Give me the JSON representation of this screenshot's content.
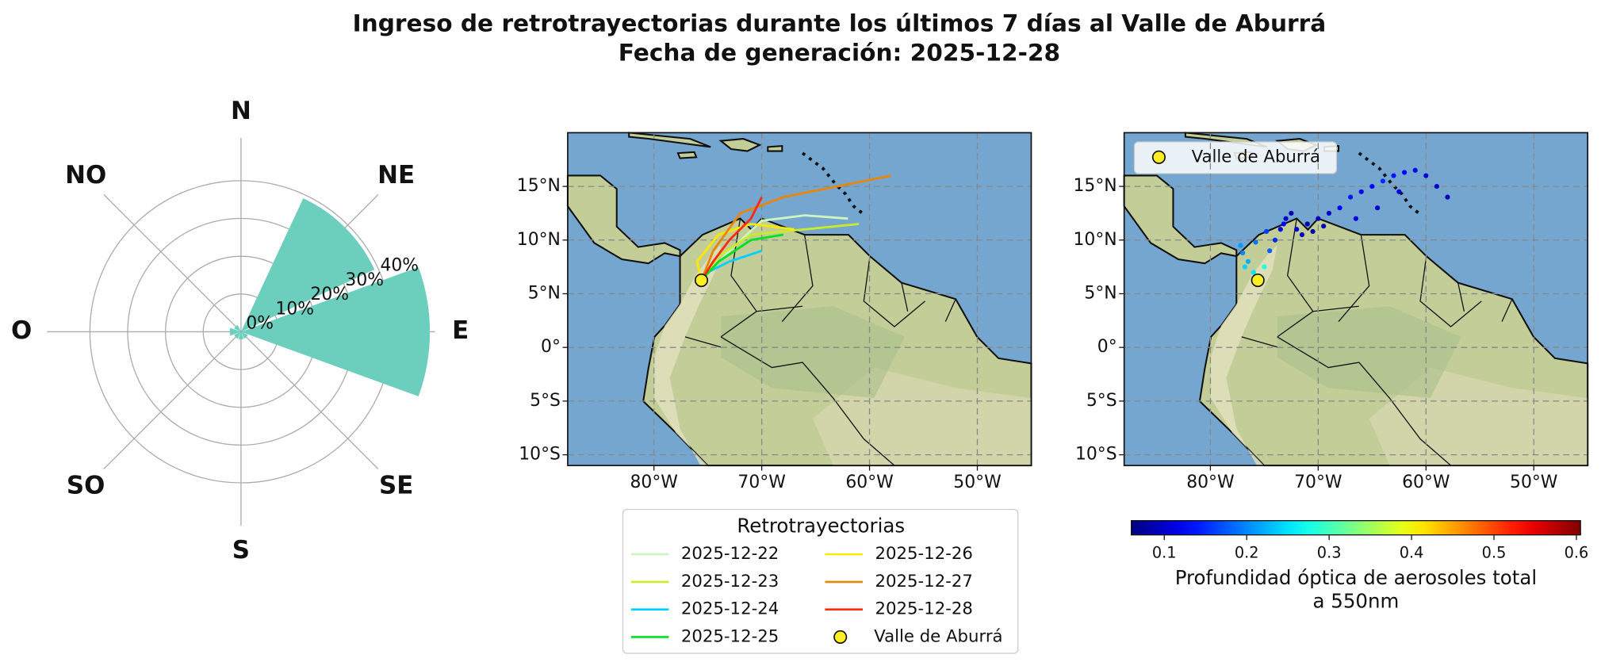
{
  "figure": {
    "title": "Ingreso de retrotrayectorias durante los últimos 7 días al Valle de Aburrá",
    "subtitle": "Fecha de generación: 2025-12-28"
  },
  "chart_data": [
    {
      "type": "rose",
      "categories": [
        "N",
        "NE",
        "E",
        "SE",
        "S",
        "SO",
        "O",
        "NO"
      ],
      "values": [
        0,
        39,
        50,
        2,
        2,
        2,
        3,
        2
      ],
      "color": "#6ccfbe",
      "rlim": [
        0,
        50
      ],
      "rticks": [
        {
          "value": 0,
          "label": "0%"
        },
        {
          "value": 10,
          "label": "10%"
        },
        {
          "value": 20,
          "label": "20%"
        },
        {
          "value": 30,
          "label": "30%"
        },
        {
          "value": 40,
          "label": "40%"
        }
      ],
      "grid": true
    },
    {
      "type": "map",
      "xlim": [
        -88,
        -45
      ],
      "ylim": [
        -11,
        20
      ],
      "xticks": [
        {
          "value": -80,
          "label": "80°W"
        },
        {
          "value": -70,
          "label": "70°W"
        },
        {
          "value": -60,
          "label": "60°W"
        },
        {
          "value": -50,
          "label": "50°W"
        }
      ],
      "yticks": [
        {
          "value": 15,
          "label": "15°N"
        },
        {
          "value": 10,
          "label": "10°N"
        },
        {
          "value": 5,
          "label": "5°N"
        },
        {
          "value": 0,
          "label": "0°"
        },
        {
          "value": -5,
          "label": "5°S"
        },
        {
          "value": -10,
          "label": "10°S"
        }
      ],
      "grid": true,
      "legend_title": "Retrotrayectorias",
      "series": [
        {
          "name": "2025-12-22",
          "color": "#ccf5c0",
          "lon": [
            -62,
            -66,
            -70,
            -73,
            -75.6
          ],
          "lat": [
            12,
            12.3,
            11.8,
            9,
            6.25
          ]
        },
        {
          "name": "2025-12-23",
          "color": "#c8ec2a",
          "lon": [
            -61,
            -66,
            -71,
            -74,
            -75.6
          ],
          "lat": [
            11.5,
            11,
            10.5,
            8.5,
            6.25
          ]
        },
        {
          "name": "2025-12-24",
          "color": "#00d0ff",
          "lon": [
            -70,
            -73,
            -75,
            -75.6
          ],
          "lat": [
            9,
            8,
            7,
            6.25
          ]
        },
        {
          "name": "2025-12-25",
          "color": "#00e020",
          "lon": [
            -68,
            -71,
            -74,
            -75.6
          ],
          "lat": [
            10.5,
            10,
            8,
            6.25
          ]
        },
        {
          "name": "2025-12-26",
          "color": "#ffe800",
          "lon": [
            -67,
            -71,
            -74,
            -76,
            -75.6
          ],
          "lat": [
            11,
            11.5,
            10.5,
            8,
            6.25
          ]
        },
        {
          "name": "2025-12-27",
          "color": "#e8860a",
          "lon": [
            -58,
            -63,
            -68,
            -72,
            -74.5,
            -75.6
          ],
          "lat": [
            16,
            15,
            14,
            12.5,
            9,
            6.25
          ]
        },
        {
          "name": "2025-12-28",
          "color": "#ff2a10",
          "lon": [
            -70,
            -71,
            -73,
            -74.5,
            -75.6
          ],
          "lat": [
            14,
            12,
            10,
            8,
            6.25
          ]
        }
      ],
      "marker": {
        "name": "Valle de Aburrá",
        "lon": -75.6,
        "lat": 6.25,
        "color": "#ffee22"
      }
    },
    {
      "type": "map-scatter",
      "xlim": [
        -88,
        -45
      ],
      "ylim": [
        -11,
        20
      ],
      "xticks": [
        {
          "value": -80,
          "label": "80°W"
        },
        {
          "value": -70,
          "label": "70°W"
        },
        {
          "value": -60,
          "label": "60°W"
        },
        {
          "value": -50,
          "label": "50°W"
        }
      ],
      "yticks": [
        {
          "value": 15,
          "label": "15°N"
        },
        {
          "value": 10,
          "label": "10°N"
        },
        {
          "value": 5,
          "label": "5°N"
        },
        {
          "value": 0,
          "label": "0°"
        },
        {
          "value": -5,
          "label": "5°S"
        },
        {
          "value": -10,
          "label": "10°S"
        }
      ],
      "grid": true,
      "points": {
        "lon": [
          -75.6,
          -76,
          -76.5,
          -77,
          -75,
          -74.5,
          -74,
          -73.5,
          -73,
          -72.5,
          -72,
          -71.5,
          -71,
          -70,
          -69,
          -68,
          -67,
          -66,
          -65,
          -64,
          -63,
          -62,
          -61,
          -60,
          -59,
          -58,
          -76.8,
          -77.2,
          -75.8,
          -74.8,
          -73.2,
          -70.5,
          -69.5,
          -66.5,
          -64.5,
          -62.5
        ],
        "lat": [
          6.25,
          7,
          8,
          8.8,
          7.5,
          9,
          10,
          11,
          12,
          12.5,
          11,
          10.5,
          11.5,
          12,
          12.5,
          13,
          14,
          14.5,
          15,
          15.5,
          16,
          16.3,
          16.5,
          16,
          15,
          14,
          7.5,
          9.5,
          9.8,
          10.8,
          11.5,
          10.8,
          11.3,
          12,
          13,
          14.5
        ],
        "values": [
          0.3,
          0.25,
          0.22,
          0.2,
          0.28,
          0.18,
          0.15,
          0.12,
          0.1,
          0.09,
          0.11,
          0.1,
          0.08,
          0.09,
          0.1,
          0.12,
          0.14,
          0.12,
          0.13,
          0.15,
          0.14,
          0.13,
          0.12,
          0.11,
          0.1,
          0.09,
          0.24,
          0.21,
          0.19,
          0.16,
          0.13,
          0.08,
          0.09,
          0.11,
          0.1,
          0.12
        ]
      },
      "colormap": "jet",
      "clim": [
        0.06,
        0.605
      ],
      "cticks": [
        0.1,
        0.2,
        0.3,
        0.4,
        0.5,
        0.6
      ],
      "colorbar_label": [
        "Profundidad óptica de aerosoles total",
        "a 550nm"
      ],
      "marker": {
        "name": "Valle de Aburrá",
        "lon": -75.6,
        "lat": 6.25,
        "color": "#ffee22"
      }
    }
  ]
}
